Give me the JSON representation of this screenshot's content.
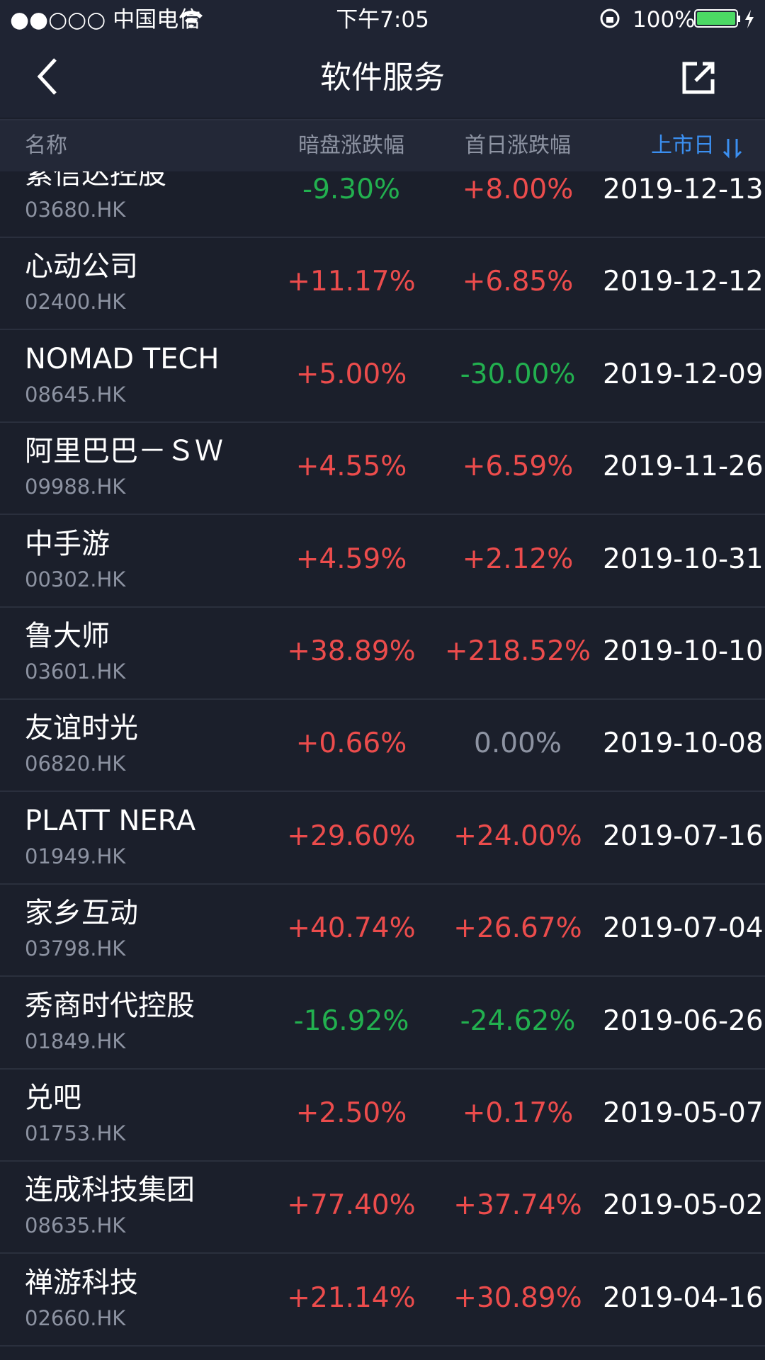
{
  "status_bar": {
    "carrier": "●●○○○ 中国电信",
    "time": "下午7:05",
    "battery": "100%"
  },
  "nav": {
    "title": "软件服务"
  },
  "table": {
    "columns": [
      "名称",
      "暗盘涨跌幅",
      "首日涨跌幅",
      "上市日"
    ],
    "rows": [
      [
        "紫信达控股",
        "03680.HK",
        "-9.30%",
        "+8.00%",
        "2019-12-13"
      ],
      [
        "心动公司",
        "02400.HK",
        "+11.17%",
        "+6.85%",
        "2019-12-12"
      ],
      [
        "NOMAD TECH",
        "08645.HK",
        "+5.00%",
        "-30.00%",
        "2019-12-09"
      ],
      [
        "阿里巴巴－ＳＷ",
        "09988.HK",
        "+4.55%",
        "+6.59%",
        "2019-11-26"
      ],
      [
        "中手游",
        "00302.HK",
        "+4.59%",
        "+2.12%",
        "2019-10-31"
      ],
      [
        "鲁大师",
        "03601.HK",
        "+38.89%",
        "+218.52%",
        "2019-10-10"
      ],
      [
        "友谊时光",
        "06820.HK",
        "+0.66%",
        "0.00%",
        "2019-10-08"
      ],
      [
        "PLATT NERA",
        "01949.HK",
        "+29.60%",
        "+24.00%",
        "2019-07-16"
      ],
      [
        "家乡互动",
        "03798.HK",
        "+40.74%",
        "+26.67%",
        "2019-07-04"
      ],
      [
        "秀商时代控股",
        "01849.HK",
        "-16.92%",
        "-24.62%",
        "2019-06-26"
      ],
      [
        "兑吧",
        "01753.HK",
        "+2.50%",
        "+0.17%",
        "2019-05-07"
      ],
      [
        "连成科技集团",
        "08635.HK",
        "+77.40%",
        "+37.74%",
        "2019-05-02"
      ],
      [
        "禅游科技",
        "02660.HK",
        "+21.14%",
        "+30.89%",
        "2019-04-16"
      ]
    ]
  }
}
